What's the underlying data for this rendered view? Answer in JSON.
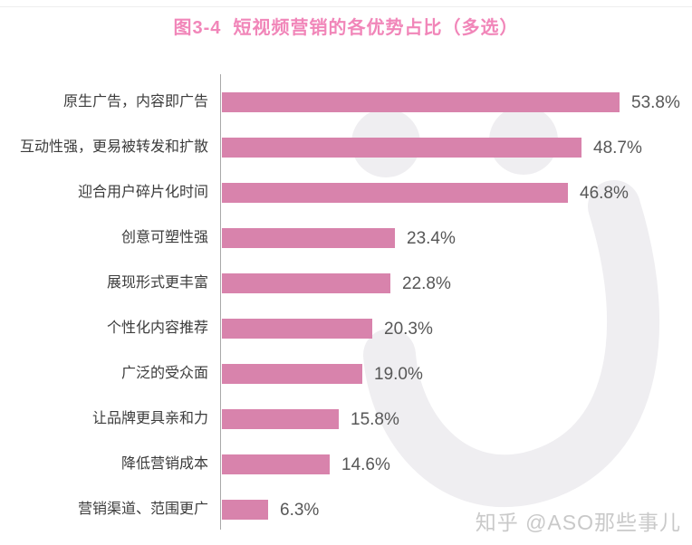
{
  "page": {
    "title": "图3-4  短视频营销的各优势占比（多选）",
    "watermark_text": "知乎 @ASO那些事儿"
  },
  "colors": {
    "bar": "#d883ac",
    "title": "#f186b9",
    "axis": "#a9a9a9",
    "label": "#3c3c3c",
    "value": "#575757",
    "wm_shape": "#efeef1",
    "wm_text": "#c9c9c9"
  },
  "chart_data": {
    "type": "bar",
    "orientation": "horizontal",
    "title": "图3-4  短视频营销的各优势占比（多选）",
    "categories": [
      "原生广告，内容即广告",
      "互动性强，更易被转发和扩散",
      "迎合用户碎片化时间",
      "创意可塑性强",
      "展现形式更丰富",
      "个性化内容推荐",
      "广泛的受众面",
      "让品牌更具亲和力",
      "降低营销成本",
      "营销渠道、范围更广"
    ],
    "values": [
      53.8,
      48.7,
      46.8,
      23.4,
      22.8,
      20.3,
      19.0,
      15.8,
      14.6,
      6.3
    ],
    "value_labels": [
      "53.8%",
      "48.7%",
      "46.8%",
      "23.4%",
      "22.8%",
      "20.3%",
      "19.0%",
      "15.8%",
      "14.6%",
      "6.3%"
    ],
    "xlabel": "",
    "ylabel": "",
    "xlim": [
      0,
      60
    ],
    "grid": false,
    "legend": false,
    "bar_color": "#d883ac",
    "value_label_position": "right-of-bar"
  }
}
